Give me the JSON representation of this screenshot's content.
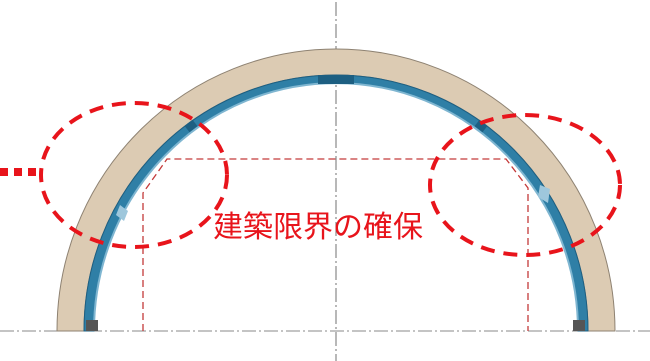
{
  "annotation": {
    "text": "建築限界の確保",
    "color": "#e8141b"
  },
  "colors": {
    "lining": "#dccbb3",
    "lining_edge": "#8e8272",
    "segment": "#2f7fa6",
    "segment_dark": "#1d5f82",
    "segment_light": "#7fb6d1",
    "clearance": "#c43a3a",
    "centerline": "#707070",
    "callout": "#e8141b",
    "footing": "#555555"
  }
}
